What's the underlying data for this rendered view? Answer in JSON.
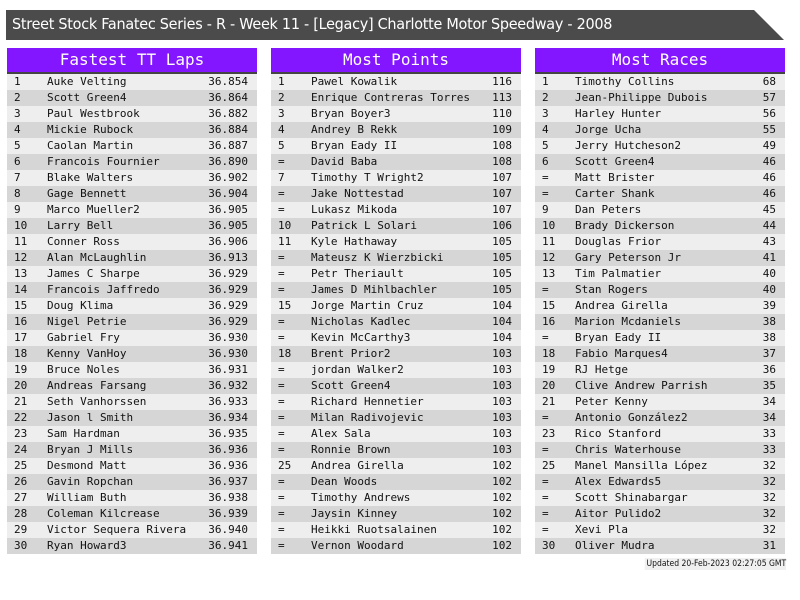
{
  "title": "Street Stock Fanatec Series - R - Week 11 - [Legacy] Charlotte Motor Speedway - 2008",
  "colors": {
    "header": "#8316ff",
    "titlebar": "#4b4b4b",
    "row_light": "#eeeeee",
    "row_dark": "#d6d6d6"
  },
  "tables": [
    {
      "title": "Fastest TT Laps",
      "rows": [
        [
          "1",
          "Auke Velting",
          "36.854"
        ],
        [
          "2",
          "Scott Green4",
          "36.864"
        ],
        [
          "3",
          "Paul Westbrook",
          "36.882"
        ],
        [
          "4",
          "Mickie Rubock",
          "36.884"
        ],
        [
          "5",
          "Caolan Martin",
          "36.887"
        ],
        [
          "6",
          "Francois Fournier",
          "36.890"
        ],
        [
          "7",
          "Blake Walters",
          "36.902"
        ],
        [
          "8",
          "Gage Bennett",
          "36.904"
        ],
        [
          "9",
          "Marco Mueller2",
          "36.905"
        ],
        [
          "10",
          "Larry Bell",
          "36.905"
        ],
        [
          "11",
          "Conner Ross",
          "36.906"
        ],
        [
          "12",
          "Alan McLaughlin",
          "36.913"
        ],
        [
          "13",
          "James C Sharpe",
          "36.929"
        ],
        [
          "14",
          "Francois Jaffredo",
          "36.929"
        ],
        [
          "15",
          "Doug Klima",
          "36.929"
        ],
        [
          "16",
          "Nigel Petrie",
          "36.929"
        ],
        [
          "17",
          "Gabriel Fry",
          "36.930"
        ],
        [
          "18",
          "Kenny VanHoy",
          "36.930"
        ],
        [
          "19",
          "Bruce Noles",
          "36.931"
        ],
        [
          "20",
          "Andreas Farsang",
          "36.932"
        ],
        [
          "21",
          "Seth Vanhorssen",
          "36.933"
        ],
        [
          "22",
          "Jason l Smith",
          "36.934"
        ],
        [
          "23",
          "Sam Hardman",
          "36.935"
        ],
        [
          "24",
          "Bryan J Mills",
          "36.936"
        ],
        [
          "25",
          "Desmond Matt",
          "36.936"
        ],
        [
          "26",
          "Gavin Ropchan",
          "36.937"
        ],
        [
          "27",
          "William Buth",
          "36.938"
        ],
        [
          "28",
          "Coleman Kilcrease",
          "36.939"
        ],
        [
          "29",
          "Victor Sequera Rivera",
          "36.940"
        ],
        [
          "30",
          "Ryan Howard3",
          "36.941"
        ]
      ]
    },
    {
      "title": "Most Points",
      "rows": [
        [
          "1",
          "Pawel Kowalik",
          "116"
        ],
        [
          "2",
          "Enrique Contreras Torres",
          "113"
        ],
        [
          "3",
          "Bryan Boyer3",
          "110"
        ],
        [
          "4",
          "Andrey B Rekk",
          "109"
        ],
        [
          "5",
          "Bryan Eady II",
          "108"
        ],
        [
          "=",
          "David Baba",
          "108"
        ],
        [
          "7",
          "Timothy T Wright2",
          "107"
        ],
        [
          "=",
          "Jake Nottestad",
          "107"
        ],
        [
          "=",
          "Lukasz Mikoda",
          "107"
        ],
        [
          "10",
          "Patrick L Solari",
          "106"
        ],
        [
          "11",
          "Kyle Hathaway",
          "105"
        ],
        [
          "=",
          "Mateusz K Wierzbicki",
          "105"
        ],
        [
          "=",
          "Petr Theriault",
          "105"
        ],
        [
          "=",
          "James D Mihlbachler",
          "105"
        ],
        [
          "15",
          "Jorge Martin Cruz",
          "104"
        ],
        [
          "=",
          "Nicholas Kadlec",
          "104"
        ],
        [
          "=",
          "Kevin McCarthy3",
          "104"
        ],
        [
          "18",
          "Brent Prior2",
          "103"
        ],
        [
          "=",
          "jordan Walker2",
          "103"
        ],
        [
          "=",
          "Scott Green4",
          "103"
        ],
        [
          "=",
          "Richard Hennetier",
          "103"
        ],
        [
          "=",
          "Milan Radivojevic",
          "103"
        ],
        [
          "=",
          "Alex Sala",
          "103"
        ],
        [
          "=",
          "Ronnie Brown",
          "103"
        ],
        [
          "25",
          "Andrea Girella",
          "102"
        ],
        [
          "=",
          "Dean Woods",
          "102"
        ],
        [
          "=",
          "Timothy Andrews",
          "102"
        ],
        [
          "=",
          "Jaysin Kinney",
          "102"
        ],
        [
          "=",
          "Heikki Ruotsalainen",
          "102"
        ],
        [
          "=",
          "Vernon Woodard",
          "102"
        ]
      ]
    },
    {
      "title": "Most Races",
      "rows": [
        [
          "1",
          "Timothy Collins",
          "68"
        ],
        [
          "2",
          "Jean-Philippe Dubois",
          "57"
        ],
        [
          "3",
          "Harley Hunter",
          "56"
        ],
        [
          "4",
          "Jorge Ucha",
          "55"
        ],
        [
          "5",
          "Jerry Hutcheson2",
          "49"
        ],
        [
          "6",
          "Scott Green4",
          "46"
        ],
        [
          "=",
          "Matt Brister",
          "46"
        ],
        [
          "=",
          "Carter Shank",
          "46"
        ],
        [
          "9",
          "Dan Peters",
          "45"
        ],
        [
          "10",
          "Brady Dickerson",
          "44"
        ],
        [
          "11",
          "Douglas Frior",
          "43"
        ],
        [
          "12",
          "Gary Peterson Jr",
          "41"
        ],
        [
          "13",
          "Tim Palmatier",
          "40"
        ],
        [
          "=",
          "Stan Rogers",
          "40"
        ],
        [
          "15",
          "Andrea Girella",
          "39"
        ],
        [
          "16",
          "Marion Mcdaniels",
          "38"
        ],
        [
          "=",
          "Bryan Eady II",
          "38"
        ],
        [
          "18",
          "Fabio Marques4",
          "37"
        ],
        [
          "19",
          "RJ Hetge",
          "36"
        ],
        [
          "20",
          "Clive Andrew Parrish",
          "35"
        ],
        [
          "21",
          "Peter Kenny",
          "34"
        ],
        [
          "=",
          "Antonio González2",
          "34"
        ],
        [
          "23",
          "Rico Stanford",
          "33"
        ],
        [
          "=",
          "Chris Waterhouse",
          "33"
        ],
        [
          "25",
          "Manel Mansilla López",
          "32"
        ],
        [
          "=",
          "Alex Edwards5",
          "32"
        ],
        [
          "=",
          "Scott Shinabargar",
          "32"
        ],
        [
          "=",
          "Aitor Pulido2",
          "32"
        ],
        [
          "=",
          "Xevi Pla",
          "32"
        ],
        [
          "30",
          "Oliver Mudra",
          "31"
        ]
      ]
    }
  ],
  "updated": "Updated 20-Feb-2023 02:27:05 GMT"
}
